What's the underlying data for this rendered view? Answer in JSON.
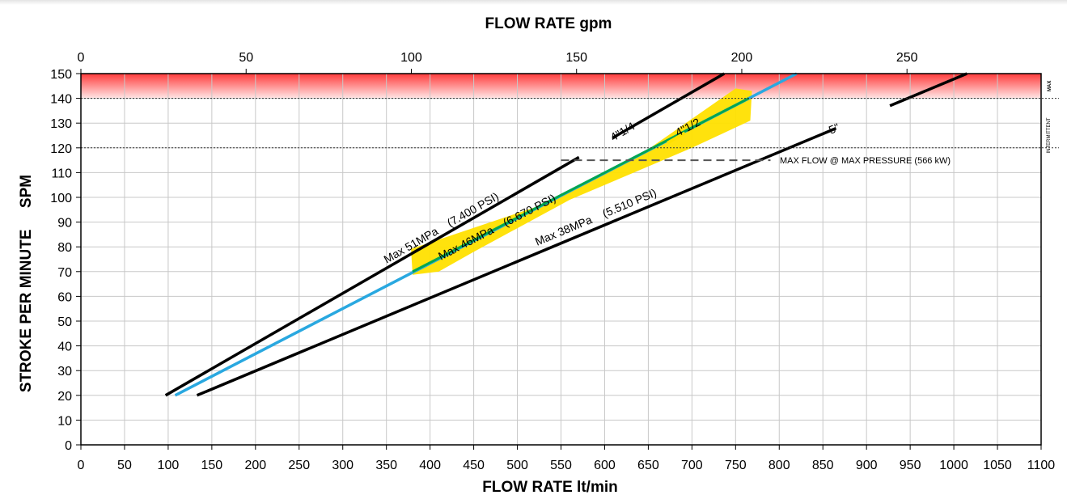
{
  "chart_data": {
    "type": "line",
    "title": "",
    "x_top_label": "FLOW RATE  gpm",
    "x_top_ticks": [
      0,
      50,
      100,
      150,
      200,
      250
    ],
    "x_bottom_label": "FLOW RATE  lt/min",
    "xlim": [
      0,
      1100
    ],
    "x_bottom_ticks": [
      0,
      50,
      100,
      150,
      200,
      250,
      300,
      350,
      400,
      450,
      500,
      550,
      600,
      650,
      700,
      750,
      800,
      850,
      900,
      950,
      1000,
      1050,
      1100
    ],
    "ylabel": "STROKE PER MINUTE     SPM",
    "ylim": [
      0,
      150
    ],
    "y_ticks": [
      0,
      10,
      20,
      30,
      40,
      50,
      60,
      70,
      80,
      90,
      100,
      110,
      120,
      130,
      140,
      150
    ],
    "grid": true,
    "series": [
      {
        "name": "4\"1/4",
        "color": "#000000",
        "x": [
          97,
          737
        ],
        "y": [
          20,
          150
        ]
      },
      {
        "name": "4\"1/2",
        "color": "#29a8e0",
        "x": [
          108,
          820
        ],
        "y": [
          20,
          150
        ]
      },
      {
        "name": "5\"",
        "color": "#000000",
        "x": [
          133,
          1015
        ],
        "y": [
          20,
          150
        ]
      }
    ],
    "highlight": {
      "color": "#00a651",
      "band_color": "#ffe000",
      "x": [
        380,
        765
      ],
      "y": [
        70,
        140
      ]
    },
    "reference_lines": [
      {
        "label": "INTERMITTENT",
        "y": 120,
        "style": "dotted"
      },
      {
        "label": "MAX",
        "y": 140,
        "style": "dotted"
      },
      {
        "label": "MAX FLOW @ MAX PRESSURE (566 kW)",
        "y": 115,
        "x_start": 550,
        "x_end": 790,
        "style": "dashed"
      }
    ],
    "max_zone": {
      "y": [
        140,
        150
      ],
      "color": "#ff3b3b"
    },
    "annotations": [
      {
        "text": "Max 51MPa    (7.400 PSI)"
      },
      {
        "text": "Max 46MPa    (6.670 PSI)"
      },
      {
        "text": "Max 38MPa    (5.510 PSI)"
      },
      {
        "text": "4\"1/4"
      },
      {
        "text": "4\"1/2"
      },
      {
        "text": "5\""
      }
    ]
  }
}
